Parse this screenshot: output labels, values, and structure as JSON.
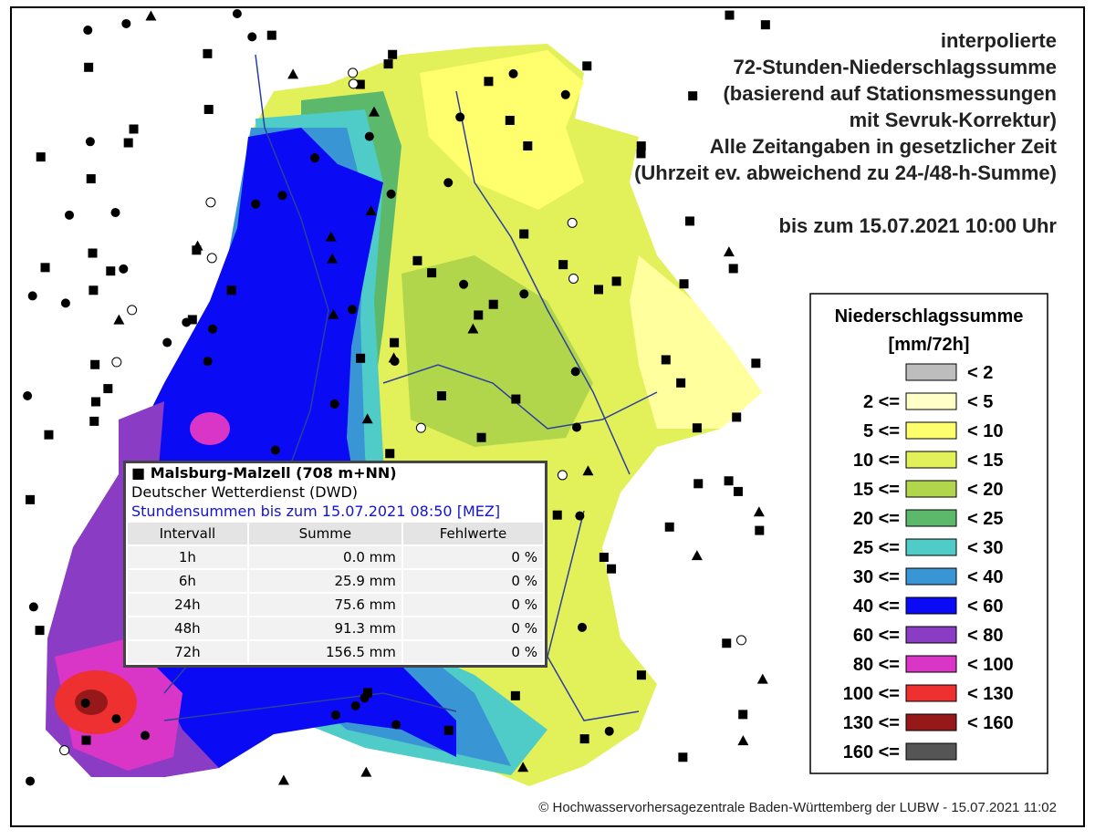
{
  "header": {
    "lines": [
      "interpolierte",
      "72-Stunden-Niederschlagssumme",
      "(basierend auf Stationsmessungen",
      "mit Sevruk-Korrektur)",
      "Alle Zeitangaben in gesetzlicher Zeit",
      "(Uhrzeit ev. abweichend zu 24-/48-h-Summe)"
    ],
    "date": "bis zum 15.07.2021 10:00 Uhr"
  },
  "legend": {
    "title": "Niederschlagssumme",
    "unit": "[mm/72h]",
    "items": [
      {
        "upper": "< 2",
        "color": "#bdbdbd"
      },
      {
        "lower": "2 <=",
        "upper": "< 5",
        "color": "#ffffc8"
      },
      {
        "lower": "5 <=",
        "upper": "< 10",
        "color": "#ffff6e"
      },
      {
        "lower": "10 <=",
        "upper": "< 15",
        "color": "#e2f05a"
      },
      {
        "lower": "15 <=",
        "upper": "< 20",
        "color": "#b1d64b"
      },
      {
        "lower": "20 <=",
        "upper": "< 25",
        "color": "#5cb96c"
      },
      {
        "lower": "25 <=",
        "upper": "< 30",
        "color": "#4fcbc8"
      },
      {
        "lower": "30 <=",
        "upper": "< 40",
        "color": "#3a95d4"
      },
      {
        "lower": "40 <=",
        "upper": "< 60",
        "color": "#0a0af5"
      },
      {
        "lower": "60 <=",
        "upper": "< 80",
        "color": "#8a3cc4"
      },
      {
        "lower": "80 <=",
        "upper": "< 100",
        "color": "#d935c7"
      },
      {
        "lower": "100 <=",
        "upper": "< 130",
        "color": "#ef3030"
      },
      {
        "lower": "130 <=",
        "upper": "< 160",
        "color": "#961818"
      },
      {
        "lower": "160 <=",
        "color": "#555555"
      }
    ]
  },
  "popup": {
    "station": "Malsburg-Malzell (708 m+NN)",
    "source": "Deutscher Wetterdienst (DWD)",
    "period": "Stundensummen bis zum 15.07.2021 08:50 [MEZ]",
    "columns": [
      "Intervall",
      "Summe",
      "Fehlwerte"
    ],
    "rows": [
      [
        "1h",
        "0.0 mm",
        "0 %"
      ],
      [
        "6h",
        "25.9 mm",
        "0 %"
      ],
      [
        "24h",
        "75.6 mm",
        "0 %"
      ],
      [
        "48h",
        "91.3 mm",
        "0 %"
      ],
      [
        "72h",
        "156.5 mm",
        "0 %"
      ]
    ]
  },
  "footer": "© Hochwasservorhersagezentrale Baden-Württemberg der LUBW - 15.07.2021 11:02"
}
